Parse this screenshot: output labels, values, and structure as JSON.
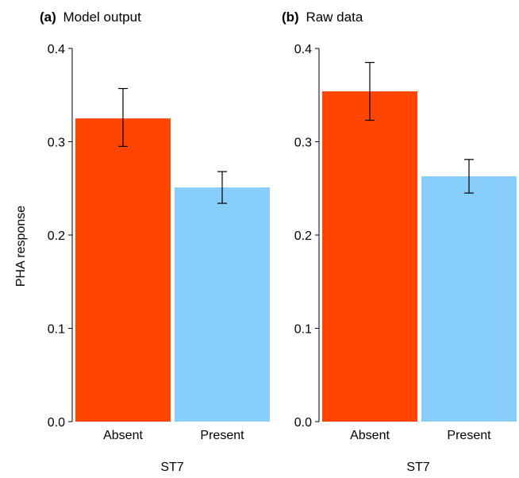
{
  "chart_data": [
    {
      "type": "bar",
      "panel_tag": "(a)",
      "title": "Model output",
      "categories": [
        "Absent",
        "Present"
      ],
      "values": [
        0.325,
        0.251
      ],
      "error_low": [
        0.295,
        0.234
      ],
      "error_high": [
        0.357,
        0.268
      ],
      "colors": [
        "#ff4500",
        "#87cefa"
      ],
      "xlabel": "ST7",
      "ylabel": "PHA response",
      "ylim": [
        0,
        0.4
      ],
      "yticks": [
        "0.0",
        "0.1",
        "0.2",
        "0.3",
        "0.4"
      ],
      "grid": false
    },
    {
      "type": "bar",
      "panel_tag": "(b)",
      "title": "Raw data",
      "categories": [
        "Absent",
        "Present"
      ],
      "values": [
        0.354,
        0.263
      ],
      "error_low": [
        0.323,
        0.245
      ],
      "error_high": [
        0.385,
        0.281
      ],
      "colors": [
        "#ff4500",
        "#87cefa"
      ],
      "xlabel": "ST7",
      "ylabel": "",
      "ylim": [
        0,
        0.4
      ],
      "yticks": [
        "0.0",
        "0.1",
        "0.2",
        "0.3",
        "0.4"
      ],
      "grid": false
    }
  ]
}
